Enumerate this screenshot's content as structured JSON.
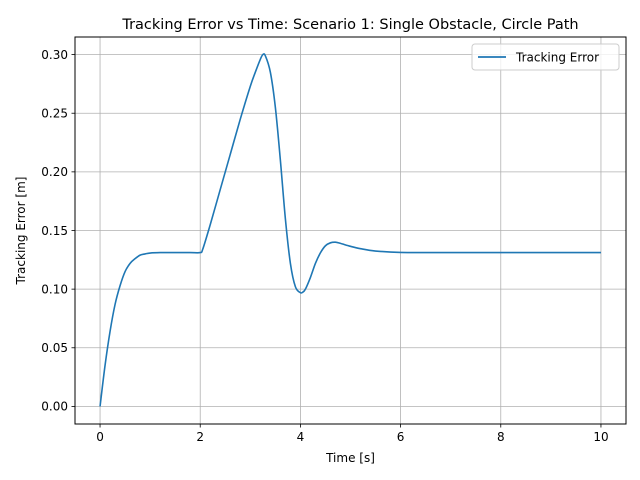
{
  "chart_data": {
    "type": "line",
    "title": "Tracking Error vs Time: Scenario 1: Single Obstacle, Circle Path",
    "xlabel": "Time [s]",
    "ylabel": "Tracking Error [m]",
    "xlim": [
      -0.5,
      10.5
    ],
    "ylim": [
      -0.015,
      0.315
    ],
    "xticks": [
      0,
      2,
      4,
      6,
      8,
      10
    ],
    "xtick_labels": [
      "0",
      "2",
      "4",
      "6",
      "8",
      "10"
    ],
    "yticks": [
      0.0,
      0.05,
      0.1,
      0.15,
      0.2,
      0.25,
      0.3
    ],
    "ytick_labels": [
      "0.00",
      "0.05",
      "0.10",
      "0.15",
      "0.20",
      "0.25",
      "0.30"
    ],
    "grid": true,
    "legend_position": "upper right",
    "series": [
      {
        "name": "Tracking Error",
        "color": "#1f77b4",
        "x": [
          0,
          0.1,
          0.2,
          0.3,
          0.4,
          0.5,
          0.6,
          0.7,
          0.8,
          0.9,
          1.0,
          1.2,
          1.5,
          1.8,
          2.0,
          2.05,
          2.2,
          2.4,
          2.6,
          2.8,
          3.0,
          3.1,
          3.2,
          3.25,
          3.3,
          3.4,
          3.5,
          3.6,
          3.7,
          3.8,
          3.9,
          4.0,
          4.05,
          4.1,
          4.2,
          4.3,
          4.4,
          4.5,
          4.6,
          4.7,
          4.8,
          5.0,
          5.2,
          5.5,
          6.0,
          7.0,
          8.0,
          9.0,
          10.0
        ],
        "values": [
          0.0,
          0.035,
          0.064,
          0.087,
          0.103,
          0.115,
          0.122,
          0.126,
          0.129,
          0.13,
          0.1308,
          0.1312,
          0.1312,
          0.1312,
          0.1312,
          0.134,
          0.155,
          0.185,
          0.215,
          0.245,
          0.273,
          0.285,
          0.296,
          0.3,
          0.299,
          0.285,
          0.255,
          0.21,
          0.16,
          0.122,
          0.102,
          0.097,
          0.0975,
          0.1,
          0.11,
          0.122,
          0.131,
          0.137,
          0.1395,
          0.14,
          0.139,
          0.1365,
          0.1345,
          0.1325,
          0.1313,
          0.1312,
          0.1312,
          0.1312,
          0.1312
        ]
      }
    ]
  }
}
